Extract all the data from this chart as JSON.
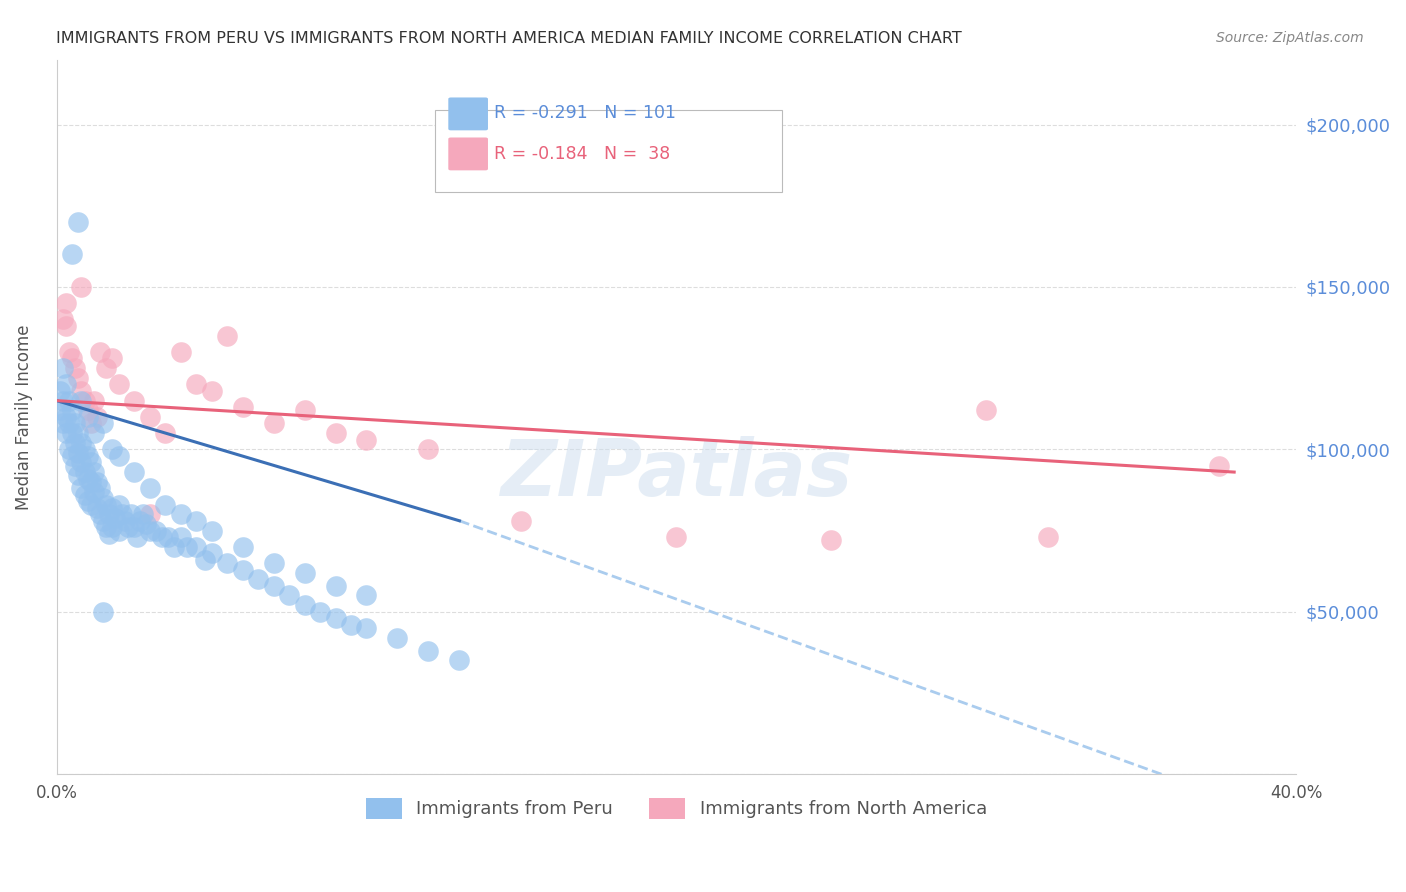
{
  "title": "IMMIGRANTS FROM PERU VS IMMIGRANTS FROM NORTH AMERICA MEDIAN FAMILY INCOME CORRELATION CHART",
  "source": "Source: ZipAtlas.com",
  "ylabel": "Median Family Income",
  "xlim": [
    0.0,
    0.4
  ],
  "ylim": [
    0,
    220000
  ],
  "yticks": [
    0,
    50000,
    100000,
    150000,
    200000
  ],
  "ytick_labels": [
    "",
    "$50,000",
    "$100,000",
    "$150,000",
    "$200,000"
  ],
  "xticks": [
    0.0,
    0.05,
    0.1,
    0.15,
    0.2,
    0.25,
    0.3,
    0.35,
    0.4
  ],
  "xtick_labels": [
    "0.0%",
    "",
    "",
    "",
    "",
    "",
    "",
    "",
    "40.0%"
  ],
  "blue_color": "#92C0ED",
  "pink_color": "#F5A8BC",
  "line_blue": "#3B6FB5",
  "line_pink": "#E8627A",
  "line_dashed_color": "#AACCEE",
  "watermark": "ZIPatlas",
  "background_color": "#FFFFFF",
  "grid_color": "#DDDDDD",
  "ytick_color": "#5B8DD9",
  "title_color": "#333333",
  "peru_x": [
    0.001,
    0.001,
    0.002,
    0.002,
    0.002,
    0.003,
    0.003,
    0.003,
    0.004,
    0.004,
    0.004,
    0.005,
    0.005,
    0.005,
    0.006,
    0.006,
    0.006,
    0.007,
    0.007,
    0.007,
    0.008,
    0.008,
    0.008,
    0.009,
    0.009,
    0.009,
    0.01,
    0.01,
    0.01,
    0.011,
    0.011,
    0.011,
    0.012,
    0.012,
    0.013,
    0.013,
    0.014,
    0.014,
    0.015,
    0.015,
    0.016,
    0.016,
    0.017,
    0.017,
    0.018,
    0.018,
    0.019,
    0.02,
    0.02,
    0.021,
    0.022,
    0.023,
    0.024,
    0.025,
    0.026,
    0.027,
    0.028,
    0.029,
    0.03,
    0.032,
    0.034,
    0.036,
    0.038,
    0.04,
    0.042,
    0.045,
    0.048,
    0.05,
    0.055,
    0.06,
    0.065,
    0.07,
    0.075,
    0.08,
    0.085,
    0.09,
    0.095,
    0.1,
    0.11,
    0.12,
    0.13,
    0.008,
    0.01,
    0.012,
    0.015,
    0.018,
    0.02,
    0.025,
    0.03,
    0.035,
    0.04,
    0.045,
    0.05,
    0.06,
    0.07,
    0.08,
    0.09,
    0.1,
    0.005,
    0.007,
    0.015
  ],
  "peru_y": [
    118000,
    112000,
    125000,
    115000,
    108000,
    120000,
    110000,
    105000,
    115000,
    108000,
    100000,
    112000,
    105000,
    98000,
    108000,
    102000,
    95000,
    105000,
    99000,
    92000,
    102000,
    96000,
    88000,
    100000,
    93000,
    86000,
    98000,
    91000,
    84000,
    96000,
    90000,
    83000,
    93000,
    87000,
    90000,
    82000,
    88000,
    80000,
    85000,
    78000,
    83000,
    76000,
    80000,
    74000,
    82000,
    76000,
    79000,
    83000,
    75000,
    80000,
    78000,
    76000,
    80000,
    76000,
    73000,
    78000,
    80000,
    77000,
    75000,
    75000,
    73000,
    73000,
    70000,
    73000,
    70000,
    70000,
    66000,
    68000,
    65000,
    63000,
    60000,
    58000,
    55000,
    52000,
    50000,
    48000,
    46000,
    45000,
    42000,
    38000,
    35000,
    115000,
    110000,
    105000,
    108000,
    100000,
    98000,
    93000,
    88000,
    83000,
    80000,
    78000,
    75000,
    70000,
    65000,
    62000,
    58000,
    55000,
    160000,
    170000,
    50000
  ],
  "northam_x": [
    0.002,
    0.003,
    0.003,
    0.004,
    0.005,
    0.006,
    0.007,
    0.008,
    0.009,
    0.01,
    0.011,
    0.012,
    0.013,
    0.014,
    0.016,
    0.018,
    0.02,
    0.025,
    0.03,
    0.035,
    0.04,
    0.045,
    0.05,
    0.055,
    0.06,
    0.07,
    0.08,
    0.09,
    0.1,
    0.12,
    0.15,
    0.2,
    0.25,
    0.3,
    0.32,
    0.375,
    0.008,
    0.03
  ],
  "northam_y": [
    140000,
    145000,
    138000,
    130000,
    128000,
    125000,
    122000,
    118000,
    115000,
    112000,
    108000,
    115000,
    110000,
    130000,
    125000,
    128000,
    120000,
    115000,
    110000,
    105000,
    130000,
    120000,
    118000,
    135000,
    113000,
    108000,
    112000,
    105000,
    103000,
    100000,
    78000,
    73000,
    72000,
    112000,
    73000,
    95000,
    150000,
    80000
  ],
  "blue_line_x": [
    0.0,
    0.13
  ],
  "blue_line_y": [
    115000,
    78000
  ],
  "dashed_line_x": [
    0.13,
    0.4
  ],
  "dashed_line_y": [
    78000,
    -15000
  ],
  "pink_line_x": [
    0.0,
    0.38
  ],
  "pink_line_y": [
    115000,
    93000
  ]
}
